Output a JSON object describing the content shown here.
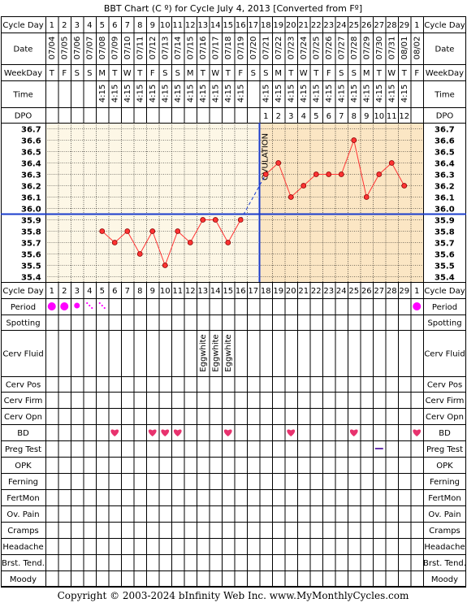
{
  "title": "BBT Chart (C º) for Cycle July 4, 2013  [Converted from Fº]",
  "row_labels": {
    "cycle_day": "Cycle Day",
    "date": "Date",
    "weekday": "WeekDay",
    "time": "Time",
    "dpo": "DPO"
  },
  "days": [
    1,
    2,
    3,
    4,
    5,
    6,
    7,
    8,
    9,
    10,
    11,
    12,
    13,
    14,
    15,
    16,
    17,
    18,
    19,
    20,
    21,
    22,
    23,
    24,
    25,
    26,
    27,
    28,
    29,
    1
  ],
  "dates": [
    "07/04",
    "07/05",
    "07/06",
    "07/07",
    "07/08",
    "07/09",
    "07/10",
    "07/11",
    "07/12",
    "07/13",
    "07/14",
    "07/15",
    "07/16",
    "07/17",
    "07/18",
    "07/19",
    "07/20",
    "07/21",
    "07/22",
    "07/23",
    "07/24",
    "07/25",
    "07/26",
    "07/27",
    "07/28",
    "07/29",
    "07/30",
    "07/31",
    "08/01",
    "08/02"
  ],
  "weekdays": [
    "T",
    "F",
    "S",
    "S",
    "M",
    "T",
    "W",
    "T",
    "F",
    "S",
    "S",
    "M",
    "T",
    "W",
    "T",
    "F",
    "S",
    "S",
    "M",
    "T",
    "W",
    "T",
    "F",
    "S",
    "S",
    "M",
    "T",
    "W",
    "T",
    "F"
  ],
  "times": [
    "",
    "",
    "",
    "",
    "4:15",
    "4:15",
    "4:15",
    "4:15",
    "4:15",
    "4:15",
    "4:15",
    "4:15",
    "4:15",
    "4:15",
    "4:15",
    "4:15",
    "",
    "4:15",
    "4:15",
    "4:15",
    "4:15",
    "4:15",
    "4:15",
    "4:15",
    "4:15",
    "4:15",
    "4:15",
    "4:15",
    "4:15",
    ""
  ],
  "dpo": [
    "",
    "",
    "",
    "",
    "",
    "",
    "",
    "",
    "",
    "",
    "",
    "",
    "",
    "",
    "",
    "",
    "",
    "1",
    "2",
    "3",
    "4",
    "5",
    "6",
    "7",
    "8",
    "9",
    "10",
    "11",
    "12",
    ""
  ],
  "chart_data": {
    "type": "line",
    "ylim": [
      35.4,
      36.7
    ],
    "y_ticks": [
      "36.7",
      "36.6",
      "36.5",
      "36.4",
      "36.3",
      "36.2",
      "36.1",
      "36.0",
      "35.9",
      "35.8",
      "35.7",
      "35.6",
      "35.5",
      "35.4"
    ],
    "temps": [
      null,
      null,
      null,
      null,
      35.8,
      35.7,
      35.8,
      35.6,
      35.8,
      35.5,
      35.8,
      35.7,
      35.9,
      35.9,
      35.7,
      35.9,
      null,
      36.3,
      36.4,
      36.1,
      36.2,
      36.3,
      36.3,
      36.3,
      36.6,
      36.1,
      36.3,
      36.4,
      36.2,
      null
    ],
    "coverline": 35.95,
    "ovulation_after_day_index": 16,
    "ovulation_label": "OVULATION"
  },
  "lower_labels": [
    "Cycle Day",
    "Period",
    "Spotting",
    "Cerv Fluid",
    "Cerv Pos",
    "Cerv Firm",
    "Cerv Opn",
    "BD",
    "Preg Test",
    "OPK",
    "Ferning",
    "FertMon",
    "Ov. Pain",
    "Cramps",
    "Headache",
    "Brst. Tend.",
    "Moody"
  ],
  "period": [
    "heavy",
    "heavy",
    "medium",
    "light",
    "light",
    "",
    "",
    "",
    "",
    "",
    "",
    "",
    "",
    "",
    "",
    "",
    "",
    "",
    "",
    "",
    "",
    "",
    "",
    "",
    "",
    "",
    "",
    "",
    "",
    "heavy"
  ],
  "cerv_fluid": [
    "",
    "",
    "",
    "",
    "",
    "",
    "",
    "",
    "",
    "",
    "",
    "",
    "Eggwhite",
    "Eggwhite",
    "Eggwhite",
    "",
    "",
    "",
    "",
    "",
    "",
    "",
    "",
    "",
    "",
    "",
    "",
    "",
    "",
    ""
  ],
  "bd": [
    false,
    false,
    false,
    false,
    false,
    true,
    false,
    false,
    true,
    true,
    true,
    false,
    false,
    false,
    true,
    false,
    false,
    false,
    false,
    true,
    false,
    false,
    false,
    false,
    true,
    false,
    false,
    false,
    false,
    true
  ],
  "preg_test": [
    "",
    "",
    "",
    "",
    "",
    "",
    "",
    "",
    "",
    "",
    "",
    "",
    "",
    "",
    "",
    "",
    "",
    "",
    "",
    "",
    "",
    "",
    "",
    "",
    "",
    "",
    "negative",
    "",
    "",
    ""
  ],
  "colors": {
    "grid": "#000000",
    "pre_bg": "#fdf7e6",
    "post_bg": "#fbe6c4",
    "temp_line": "#ff3333",
    "cover_line": "#1a3ccc",
    "ovulation_line": "#1a3ccc",
    "period": "#ff00ff",
    "heart": "#e8326e",
    "preg_dash": "#6633aa"
  },
  "footer": "Copyright © 2003-2024 bInfinity Web Inc.    www.MyMonthlyCycles.com"
}
